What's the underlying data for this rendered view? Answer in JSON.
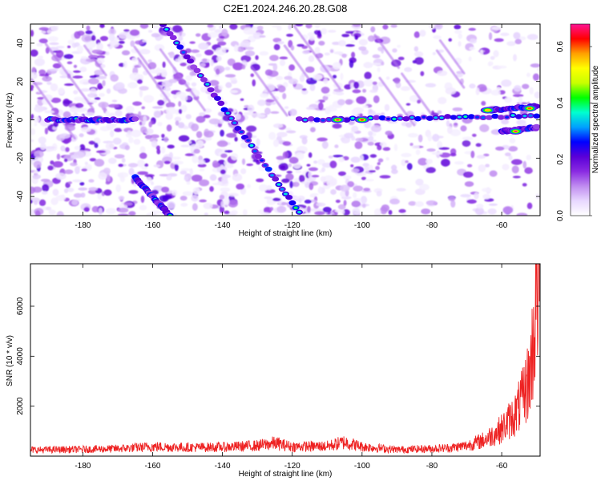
{
  "figure": {
    "title": "C2E1.2024.246.20.28.G08"
  },
  "chart_data": [
    {
      "type": "heatmap",
      "xlabel": "Height of straight line (km)",
      "ylabel": "Frequency (Hz)",
      "xlim": [
        -195,
        -49
      ],
      "ylim": [
        -50,
        50
      ],
      "x_ticks": [
        -180,
        -160,
        -140,
        -120,
        -100,
        -80,
        -60
      ],
      "y_ticks": [
        -40,
        -20,
        0,
        20,
        40
      ],
      "colorbar": {
        "label": "Normalized spectral amplitude",
        "range": [
          0,
          0.68
        ],
        "ticks": [
          0.0,
          0.2,
          0.4,
          0.6
        ],
        "colormap": [
          "#ffffff",
          "#e8d8ff",
          "#c08cf0",
          "#8a2be2",
          "#5a00d8",
          "#0000ff",
          "#00a0ff",
          "#00ffd0",
          "#00ff00",
          "#c8ff00",
          "#ffff00",
          "#ffa000",
          "#ff0000",
          "#ff1493"
        ]
      },
      "features": [
        {
          "name": "horizontal line near 0 Hz",
          "x": [
            -190,
            -165
          ],
          "y": [
            0,
            0
          ]
        },
        {
          "name": "horizontal line near 0 Hz",
          "x": [
            -118,
            -50
          ],
          "y": [
            0,
            2
          ]
        },
        {
          "name": "upper right segment",
          "x": [
            -64,
            -50
          ],
          "y": [
            5,
            7
          ]
        },
        {
          "name": "lower right segment",
          "x": [
            -60,
            -50
          ],
          "y": [
            -6,
            -4
          ]
        },
        {
          "name": "diagonal streak",
          "x": [
            -157,
            -118
          ],
          "y": [
            50,
            -48
          ]
        },
        {
          "name": "diagonal streak",
          "x": [
            -165,
            -155
          ],
          "y": [
            -30,
            -50
          ]
        }
      ],
      "peak_points": [
        {
          "x": -107,
          "y": 0,
          "value": 0.68
        },
        {
          "x": -100,
          "y": 0,
          "value": 0.65
        },
        {
          "x": -56,
          "y": -6,
          "value": 0.68
        },
        {
          "x": -52,
          "y": 6,
          "value": 0.6
        },
        {
          "x": -64,
          "y": 5,
          "value": 0.55
        }
      ]
    },
    {
      "type": "line",
      "xlabel": "Height of straight line (km)",
      "ylabel": "SNR (10 * v/v)",
      "xlim": [
        -195,
        -49
      ],
      "ylim": [
        0,
        7700
      ],
      "x_ticks": [
        -180,
        -160,
        -140,
        -120,
        -100,
        -80,
        -60
      ],
      "y_ticks": [
        2000,
        4000,
        6000
      ],
      "series": [
        {
          "color": "#ee2222",
          "x": [
            -195,
            -180,
            -170,
            -160,
            -150,
            -140,
            -130,
            -125,
            -120,
            -110,
            -105,
            -100,
            -90,
            -80,
            -75,
            -70,
            -65,
            -62,
            -60,
            -58,
            -56,
            -54,
            -52,
            -51,
            -50,
            -49.5
          ],
          "y": [
            250,
            270,
            300,
            380,
            350,
            360,
            420,
            520,
            380,
            400,
            560,
            380,
            260,
            300,
            330,
            420,
            650,
            900,
            1100,
            1400,
            1700,
            2300,
            3200,
            4500,
            6500,
            7500
          ]
        }
      ]
    }
  ]
}
